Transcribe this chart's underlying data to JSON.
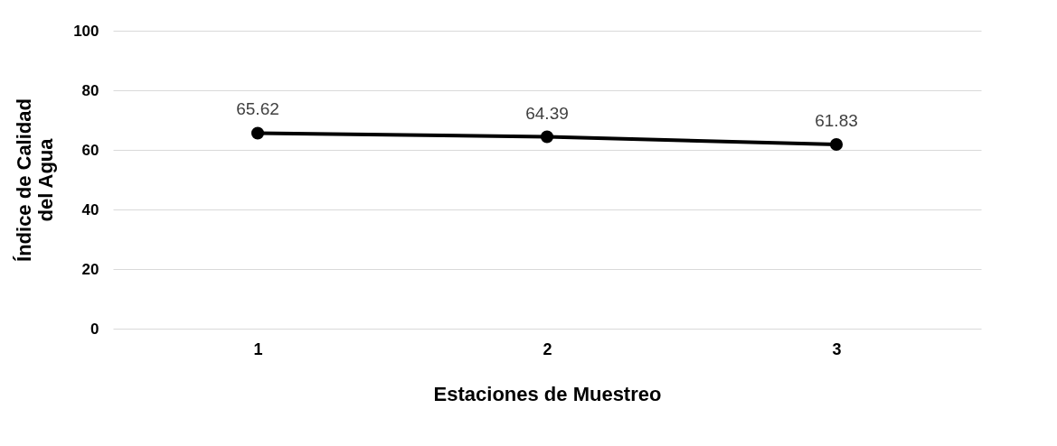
{
  "chart_data": {
    "type": "line",
    "xlabel": "Estaciones de Muestreo",
    "ylabel": "Índice de Calidad\ndel Agua",
    "categories": [
      "1",
      "2",
      "3"
    ],
    "series": [
      {
        "color": "#000000",
        "values": [
          65.62,
          64.39,
          61.83
        ]
      }
    ],
    "ylim": [
      0,
      100
    ],
    "yticks": [
      0,
      20,
      40,
      60,
      80,
      100
    ],
    "grid": "y",
    "marker": "circle",
    "line_style": "solid",
    "data_labels": true
  }
}
